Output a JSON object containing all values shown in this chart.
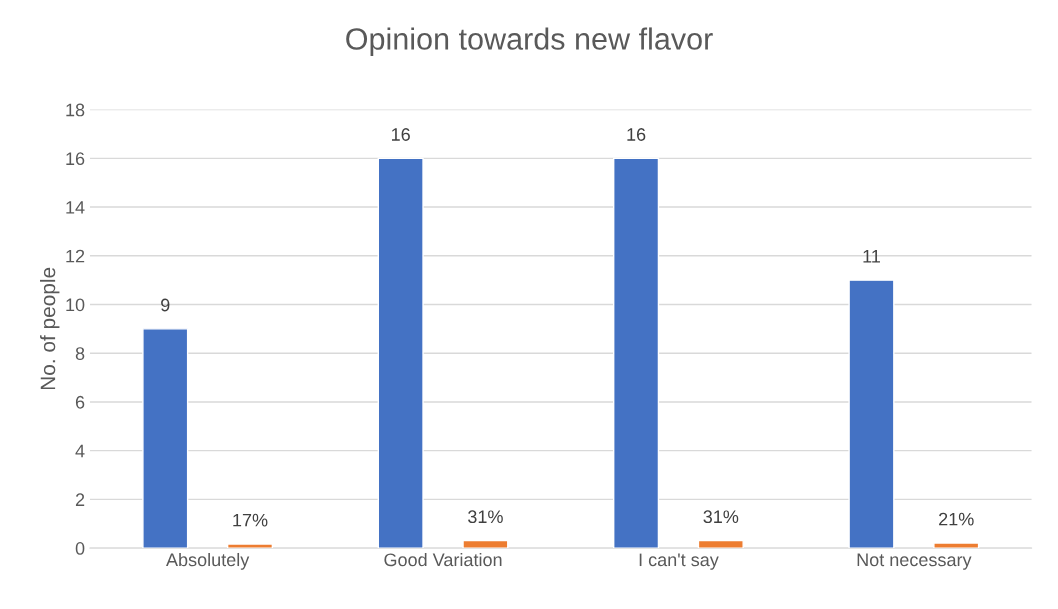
{
  "chart_data": {
    "type": "bar",
    "title": "Opinion towards new flavor",
    "ylabel": "No. of people",
    "categories": [
      "Absolutely",
      "Good Variation",
      "I can't say",
      "Not necessary"
    ],
    "series": [
      {
        "color": "#4472c4",
        "values": [
          9,
          16,
          16,
          11
        ],
        "value_labels": [
          "9",
          "16",
          "16",
          "11"
        ]
      },
      {
        "color": "#ed7d31",
        "values": [
          0.17,
          0.31,
          0.31,
          0.21
        ],
        "value_labels": [
          "17%",
          "31%",
          "31%",
          "21%"
        ]
      }
    ],
    "ylim": [
      0,
      18
    ],
    "yticks": [
      0,
      2,
      4,
      6,
      8,
      10,
      12,
      14,
      16,
      18
    ],
    "grid": "y",
    "legend": false
  }
}
